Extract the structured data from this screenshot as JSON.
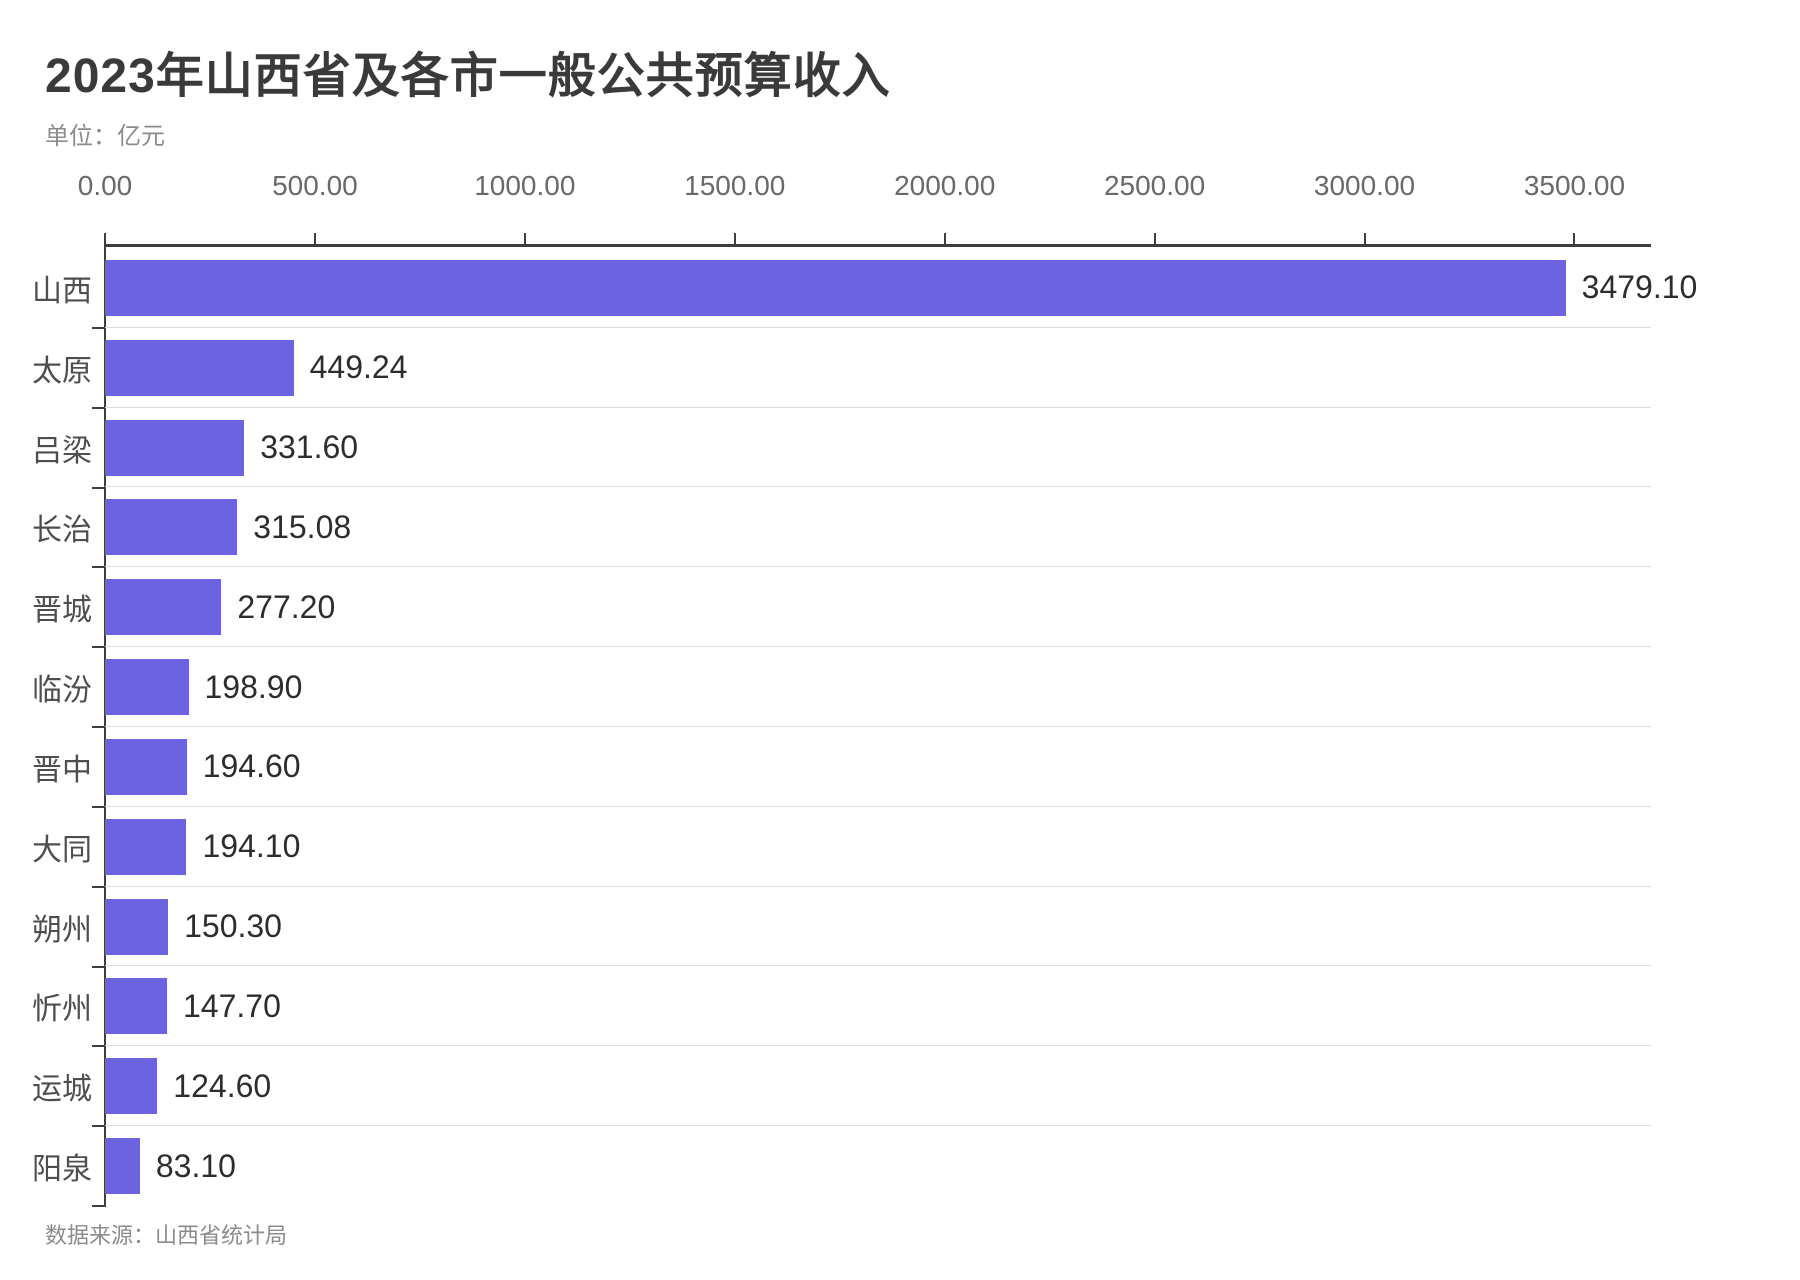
{
  "header": {
    "title": "2023年山西省及各市一般公共预算收入",
    "unit_label": "单位：亿元"
  },
  "footer": {
    "source": "数据来源：山西省统计局"
  },
  "colors": {
    "background": "#FFFFFF",
    "bar": "#6C63E0",
    "axis": "#3E3E3E",
    "separator": "#DBDBDB",
    "title_text": "#3A3A3A",
    "muted_text": "#8B8B8B",
    "category_text": "#4E4E4E",
    "tick_text": "#696969",
    "value_text": "#2D2D2D"
  },
  "chart_data": {
    "type": "bar",
    "orientation": "horizontal",
    "title": "2023年山西省及各市一般公共预算收入",
    "unit": "亿元",
    "xlabel": "",
    "ylabel": "",
    "xlim": [
      0,
      3680
    ],
    "x_ticks": [
      0,
      500,
      1000,
      1500,
      2000,
      2500,
      3000,
      3500
    ],
    "x_tick_labels": [
      "0.00",
      "500.00",
      "1000.00",
      "1500.00",
      "2000.00",
      "2500.00",
      "3000.00",
      "3500.00"
    ],
    "grid": "row-separators",
    "legend": "none",
    "categories": [
      "山西",
      "太原",
      "吕梁",
      "长治",
      "晋城",
      "临汾",
      "晋中",
      "大同",
      "朔州",
      "忻州",
      "运城",
      "阳泉"
    ],
    "values": [
      3479.1,
      449.24,
      331.6,
      315.08,
      277.2,
      198.9,
      194.6,
      194.1,
      150.3,
      147.7,
      124.6,
      83.1
    ],
    "value_labels": [
      "3479.10",
      "449.24",
      "331.60",
      "315.08",
      "277.20",
      "198.90",
      "194.60",
      "194.10",
      "150.30",
      "147.70",
      "124.60",
      "83.10"
    ]
  }
}
